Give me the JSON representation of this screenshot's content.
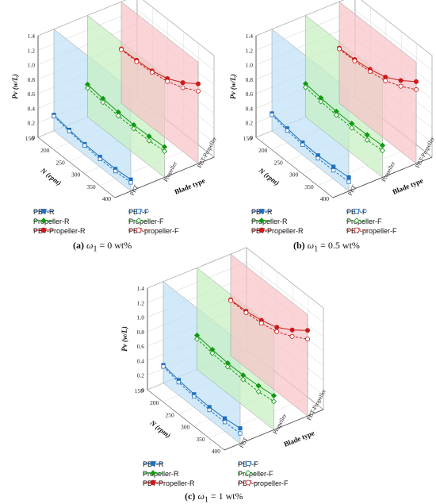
{
  "chart_data": [
    {
      "type": "line",
      "projection": "3d",
      "caption_label": "(a)",
      "caption_symbol": "ω",
      "caption_sub": "1",
      "caption_value": " = 0 wt%",
      "zlabel": "Pv (w/L)",
      "xlabel": "N (rpm)",
      "ylabel": "Blade type",
      "zlim": [
        0,
        1.4
      ],
      "zticks": [
        "0",
        "0.2",
        "0.4",
        "0.6",
        "0.8",
        "1.0",
        "1.2",
        "1.4"
      ],
      "xticks": [
        "150",
        "200",
        "250",
        "300",
        "350",
        "400"
      ],
      "categories": [
        "PBT",
        "Propeller",
        "PBT-Propeller"
      ],
      "x": [
        150,
        200,
        250,
        300,
        350,
        400
      ],
      "series": [
        {
          "name": "PBT-R",
          "blade": "PBT",
          "type": "R",
          "values": [
            0.22,
            0.18,
            0.15,
            0.14,
            0.14,
            0.16
          ]
        },
        {
          "name": "PBT-F",
          "blade": "PBT",
          "type": "F",
          "values": [
            0.2,
            0.16,
            0.13,
            0.11,
            0.11,
            0.12
          ]
        },
        {
          "name": "Propeller-R",
          "blade": "Propeller",
          "type": "R",
          "values": [
            0.45,
            0.42,
            0.4,
            0.39,
            0.4,
            0.42
          ]
        },
        {
          "name": "Propeller-F",
          "blade": "Propeller",
          "type": "F",
          "values": [
            0.4,
            0.37,
            0.35,
            0.34,
            0.34,
            0.36
          ]
        },
        {
          "name": "PBT-Propeller-R",
          "blade": "PBT-Propeller",
          "type": "R",
          "values": [
            0.75,
            0.76,
            0.78,
            0.84,
            0.95,
            1.1
          ]
        },
        {
          "name": "PBT-propeller-F",
          "blade": "PBT-Propeller",
          "type": "F",
          "values": [
            0.74,
            0.74,
            0.76,
            0.8,
            0.88,
            1.0
          ]
        }
      ]
    },
    {
      "type": "line",
      "projection": "3d",
      "caption_label": "(b)",
      "caption_symbol": "ω",
      "caption_sub": "1",
      "caption_value": " = 0.5 wt%",
      "zlabel": "Pv (w/L)",
      "xlabel": "N (rpm)",
      "ylabel": "Blade type",
      "zlim": [
        0,
        1.4
      ],
      "zticks": [
        "0",
        "0.2",
        "0.4",
        "0.6",
        "0.8",
        "1.0",
        "1.2",
        "1.4"
      ],
      "xticks": [
        "150",
        "200",
        "250",
        "300",
        "350",
        "400"
      ],
      "categories": [
        "PBT",
        "Propeller",
        "PBT-Propeller"
      ],
      "x": [
        150,
        200,
        250,
        300,
        350,
        400
      ],
      "series": [
        {
          "name": "PBT-R",
          "blade": "PBT",
          "type": "R",
          "values": [
            0.24,
            0.2,
            0.17,
            0.16,
            0.17,
            0.19
          ]
        },
        {
          "name": "PBT-F",
          "blade": "PBT",
          "type": "F",
          "values": [
            0.22,
            0.17,
            0.14,
            0.12,
            0.12,
            0.13
          ]
        },
        {
          "name": "Propeller-R",
          "blade": "Propeller",
          "type": "R",
          "values": [
            0.46,
            0.43,
            0.41,
            0.41,
            0.42,
            0.44
          ]
        },
        {
          "name": "Propeller-F",
          "blade": "Propeller",
          "type": "F",
          "values": [
            0.41,
            0.38,
            0.36,
            0.35,
            0.35,
            0.37
          ]
        },
        {
          "name": "PBT-Propeller-R",
          "blade": "PBT-Propeller",
          "type": "R",
          "values": [
            0.76,
            0.77,
            0.8,
            0.86,
            0.98,
            1.13
          ]
        },
        {
          "name": "PBT-propeller-F",
          "blade": "PBT-Propeller",
          "type": "F",
          "values": [
            0.75,
            0.75,
            0.77,
            0.81,
            0.9,
            1.02
          ]
        }
      ]
    },
    {
      "type": "line",
      "projection": "3d",
      "caption_label": "(c)",
      "caption_symbol": "ω",
      "caption_sub": "1",
      "caption_value": " = 1 wt%",
      "zlabel": "Pv (w/L)",
      "xlabel": "N (rpm)",
      "ylabel": "Blade type",
      "zlim": [
        0,
        1.4
      ],
      "zticks": [
        "0",
        "0.2",
        "0.4",
        "0.6",
        "0.8",
        "1.0",
        "1.2",
        "1.4"
      ],
      "xticks": [
        "150",
        "200",
        "250",
        "300",
        "350",
        "400"
      ],
      "categories": [
        "PBT",
        "Propeller",
        "PBT-Propeller"
      ],
      "x": [
        150,
        200,
        250,
        300,
        350,
        400
      ],
      "series": [
        {
          "name": "PBT-R",
          "blade": "PBT",
          "type": "R",
          "values": [
            0.25,
            0.21,
            0.18,
            0.17,
            0.18,
            0.21
          ]
        },
        {
          "name": "PBT-F",
          "blade": "PBT",
          "type": "F",
          "values": [
            0.23,
            0.18,
            0.15,
            0.13,
            0.13,
            0.14
          ]
        },
        {
          "name": "Propeller-R",
          "blade": "Propeller",
          "type": "R",
          "values": [
            0.47,
            0.44,
            0.42,
            0.42,
            0.44,
            0.47
          ]
        },
        {
          "name": "Propeller-F",
          "blade": "Propeller",
          "type": "F",
          "values": [
            0.42,
            0.39,
            0.37,
            0.36,
            0.36,
            0.39
          ]
        },
        {
          "name": "PBT-Propeller-R",
          "blade": "PBT-Propeller",
          "type": "R",
          "values": [
            0.77,
            0.78,
            0.82,
            0.89,
            1.02,
            1.18
          ]
        },
        {
          "name": "PBT-propeller-F",
          "blade": "PBT-Propeller",
          "type": "F",
          "values": [
            0.76,
            0.76,
            0.78,
            0.83,
            0.93,
            1.06
          ]
        }
      ]
    }
  ],
  "colors": {
    "PBT": "#1f6fc0",
    "Propeller": "#109a10",
    "PBT-Propeller": "#cc1a1a",
    "plane_PBT": "#bfe0f7",
    "plane_Propeller": "#c8f0c0",
    "plane_PBT-Propeller": "#f8c4c8"
  }
}
